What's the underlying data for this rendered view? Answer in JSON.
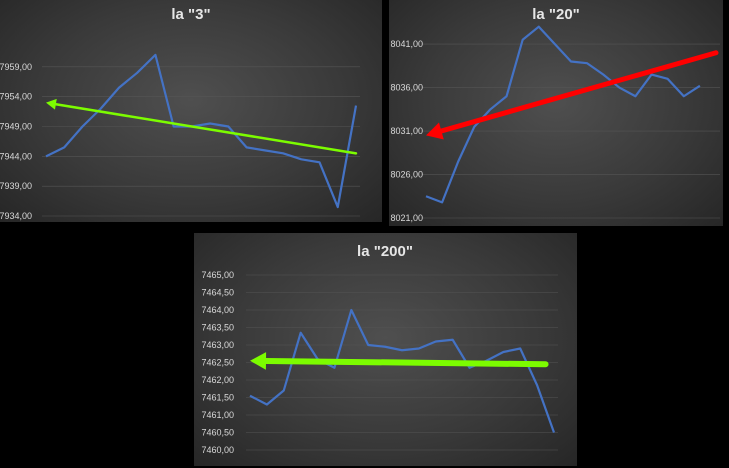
{
  "chart_data": [
    {
      "type": "line",
      "title": "la \"3\"",
      "y_ticks": [
        "7934,00",
        "7939,00",
        "7944,00",
        "7949,00",
        "7954,00",
        "7959,00"
      ],
      "ylim": [
        7934,
        7964
      ],
      "grid": true,
      "series": [
        {
          "color": "#4472c4",
          "x": [
            0,
            1,
            2,
            3,
            4,
            5,
            6,
            7,
            8,
            9,
            10,
            11,
            12,
            13,
            14,
            15,
            16,
            17
          ],
          "values": [
            7944.0,
            7945.5,
            7949.0,
            7952.0,
            7955.5,
            7958.0,
            7961.0,
            7949.0,
            7949.0,
            7949.5,
            7949.0,
            7945.5,
            7945.0,
            7944.5,
            7943.5,
            7943.0,
            7935.5,
            7952.5
          ]
        }
      ],
      "trend_arrow": {
        "color": "#7cfc00",
        "from": [
          17,
          7944.5
        ],
        "to": [
          0,
          7953.0
        ]
      }
    },
    {
      "type": "line",
      "title": "la \"20\"",
      "y_ticks": [
        "8021,00",
        "8026,00",
        "8031,00",
        "8036,00",
        "8041,00"
      ],
      "ylim": [
        8021,
        8044
      ],
      "grid": true,
      "series": [
        {
          "color": "#4472c4",
          "x": [
            0,
            1,
            2,
            3,
            4,
            5,
            6,
            7,
            8,
            9,
            10,
            11,
            12,
            13,
            14,
            15,
            16,
            17
          ],
          "values": [
            8023.5,
            8022.8,
            8027.5,
            8031.5,
            8033.5,
            8035.0,
            8041.5,
            8043.0,
            8041.0,
            8039.0,
            8038.8,
            8037.5,
            8036.0,
            8035.0,
            8037.5,
            8037.0,
            8035.0,
            8036.2
          ]
        }
      ],
      "trend_arrow": {
        "color": "#ff0000",
        "from": [
          18,
          8040.0
        ],
        "to": [
          0,
          8030.5
        ]
      }
    },
    {
      "type": "line",
      "title": "la \"200\"",
      "y_ticks": [
        "7460,00",
        "7460,50",
        "7461,00",
        "7461,50",
        "7462,00",
        "7462,50",
        "7463,00",
        "7463,50",
        "7464,00",
        "7464,50",
        "7465,00"
      ],
      "ylim": [
        7460,
        7465
      ],
      "grid": true,
      "series": [
        {
          "color": "#4472c4",
          "x": [
            0,
            1,
            2,
            3,
            4,
            5,
            6,
            7,
            8,
            9,
            10,
            11,
            12,
            13,
            14,
            15,
            16,
            17,
            18
          ],
          "values": [
            7461.55,
            7461.3,
            7461.7,
            7463.35,
            7462.6,
            7462.35,
            7464.0,
            7463.0,
            7462.95,
            7462.85,
            7462.9,
            7463.1,
            7463.15,
            7462.35,
            7462.55,
            7462.8,
            7462.9,
            7461.85,
            7460.5
          ]
        }
      ],
      "trend_arrow": {
        "color": "#7cfc00",
        "from": [
          17.5,
          7462.45
        ],
        "to": [
          0,
          7462.55
        ]
      }
    }
  ]
}
